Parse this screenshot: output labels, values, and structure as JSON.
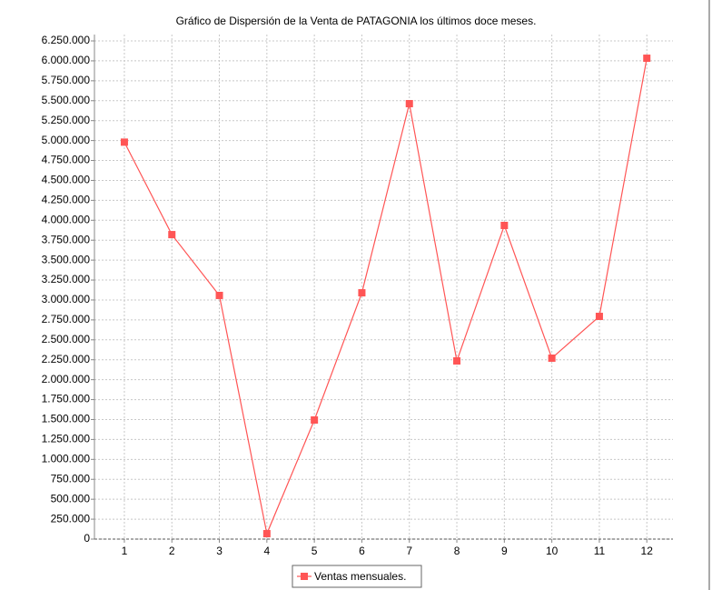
{
  "chart_data": {
    "type": "line",
    "title": "Gráfico de Dispersión de la Venta de PATAGONIA los últimos doce meses.",
    "x": [
      1,
      2,
      3,
      4,
      5,
      6,
      7,
      8,
      9,
      10,
      11,
      12
    ],
    "series": [
      {
        "name": "Ventas mensuales.",
        "color": "#ff5555",
        "values": [
          4980000,
          3820000,
          3057000,
          68000,
          1494000,
          3090000,
          5463000,
          2235000,
          3935000,
          2270000,
          2794000,
          6033000
        ]
      }
    ],
    "xlim": [
      0.37,
      12.55
    ],
    "xticks": [
      1,
      2,
      3,
      4,
      5,
      6,
      7,
      8,
      9,
      10,
      11,
      12
    ],
    "ylim": [
      0,
      6330000
    ],
    "yticks": [
      0,
      {
        "value": 250000,
        "label": "250.000"
      },
      {
        "value": 500000,
        "label": "500.000"
      },
      {
        "value": 750000,
        "label": "750.000"
      },
      {
        "value": 1000000,
        "label": "1.000.000"
      },
      {
        "value": 1250000,
        "label": "1.250.000"
      },
      {
        "value": 1500000,
        "label": "1.500.000"
      },
      {
        "value": 1750000,
        "label": "1.750.000"
      },
      {
        "value": 2000000,
        "label": "2.000.000"
      },
      {
        "value": 2250000,
        "label": "2.250.000"
      },
      {
        "value": 2500000,
        "label": "2.500.000"
      },
      {
        "value": 2750000,
        "label": "2.750.000"
      },
      {
        "value": 3000000,
        "label": "3.000.000"
      },
      {
        "value": 3250000,
        "label": "3.250.000"
      },
      {
        "value": 3500000,
        "label": "3.500.000"
      },
      {
        "value": 3750000,
        "label": "3.750.000"
      },
      {
        "value": 4000000,
        "label": "4.000.000"
      },
      {
        "value": 4250000,
        "label": "4.250.000"
      },
      {
        "value": 4500000,
        "label": "4.500.000"
      },
      {
        "value": 4750000,
        "label": "4.750.000"
      },
      {
        "value": 5000000,
        "label": "5.000.000"
      },
      {
        "value": 5250000,
        "label": "5.250.000"
      },
      {
        "value": 5500000,
        "label": "5.500.000"
      },
      {
        "value": 5750000,
        "label": "5.750.000"
      },
      {
        "value": 6000000,
        "label": "6.000.000"
      },
      {
        "value": 6250000,
        "label": "6.250.000"
      }
    ],
    "grid": true,
    "legend": "bottom"
  }
}
